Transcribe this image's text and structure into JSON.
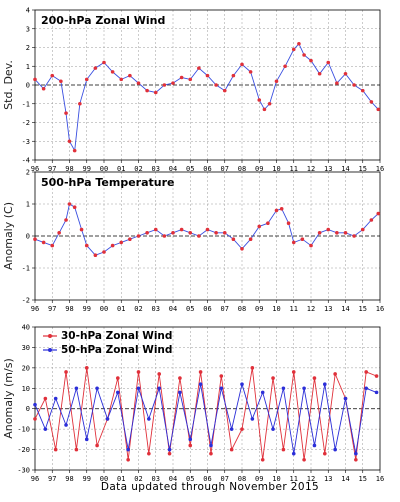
{
  "footer": "Data updated through November 2015",
  "chart_data": [
    {
      "type": "line",
      "title": "200-hPa Zonal Wind",
      "ylabel": "Std. Dev.",
      "ylim": [
        -4,
        4
      ],
      "yticks": [
        -4,
        -3,
        -2,
        -1,
        0,
        1,
        2,
        3,
        4
      ],
      "xlim": [
        1996,
        2016
      ],
      "xticks": [
        "96",
        "97",
        "98",
        "99",
        "00",
        "01",
        "02",
        "03",
        "04",
        "05",
        "06",
        "07",
        "08",
        "09",
        "10",
        "11",
        "12",
        "13",
        "14",
        "15",
        "16"
      ],
      "grid": true,
      "line_color": "#3a4fe0",
      "point_color": "#e0303a",
      "series": [
        {
          "x": [
            1996.0,
            1996.5,
            1997.0,
            1997.5,
            1997.8,
            1998.0,
            1998.3,
            1998.6,
            1999.0,
            1999.5,
            2000.0,
            2000.5,
            2001.0,
            2001.5,
            2002.0,
            2002.5,
            2003.0,
            2003.5,
            2004.0,
            2004.5,
            2005.0,
            2005.5,
            2006.0,
            2006.5,
            2007.0,
            2007.5,
            2008.0,
            2008.5,
            2009.0,
            2009.3,
            2009.6,
            2010.0,
            2010.5,
            2011.0,
            2011.3,
            2011.6,
            2012.0,
            2012.5,
            2013.0,
            2013.5,
            2014.0,
            2014.5,
            2015.0,
            2015.5,
            2015.9
          ],
          "y": [
            0.3,
            -0.2,
            0.5,
            0.2,
            -1.5,
            -3.0,
            -3.5,
            -1.0,
            0.3,
            0.9,
            1.2,
            0.7,
            0.3,
            0.5,
            0.1,
            -0.3,
            -0.4,
            0.0,
            0.1,
            0.4,
            0.3,
            0.9,
            0.5,
            0.0,
            -0.3,
            0.5,
            1.1,
            0.7,
            -0.8,
            -1.3,
            -1.0,
            0.2,
            1.0,
            1.9,
            2.2,
            1.6,
            1.3,
            0.6,
            1.2,
            0.1,
            0.6,
            0.0,
            -0.3,
            -0.9,
            -1.3
          ]
        }
      ]
    },
    {
      "type": "line",
      "title": "500-hPa Temperature",
      "ylabel": "Anomaly (C)",
      "ylim": [
        -2,
        2
      ],
      "yticks": [
        -2,
        -1,
        0,
        1,
        2
      ],
      "xlim": [
        1996,
        2016
      ],
      "xticks": [
        "96",
        "97",
        "98",
        "99",
        "00",
        "01",
        "02",
        "03",
        "04",
        "05",
        "06",
        "07",
        "08",
        "09",
        "10",
        "11",
        "12",
        "13",
        "14",
        "15",
        "16"
      ],
      "grid": true,
      "line_color": "#3a4fe0",
      "point_color": "#e0303a",
      "series": [
        {
          "x": [
            1996.0,
            1996.5,
            1997.0,
            1997.4,
            1997.8,
            1998.0,
            1998.3,
            1998.7,
            1999.0,
            1999.5,
            2000.0,
            2000.5,
            2001.0,
            2001.5,
            2002.0,
            2002.5,
            2003.0,
            2003.5,
            2004.0,
            2004.5,
            2005.0,
            2005.5,
            2006.0,
            2006.5,
            2007.0,
            2007.5,
            2008.0,
            2008.5,
            2009.0,
            2009.5,
            2010.0,
            2010.3,
            2010.7,
            2011.0,
            2011.5,
            2012.0,
            2012.5,
            2013.0,
            2013.5,
            2014.0,
            2014.5,
            2015.0,
            2015.5,
            2015.9
          ],
          "y": [
            -0.1,
            -0.2,
            -0.3,
            0.1,
            0.5,
            1.0,
            0.9,
            0.2,
            -0.3,
            -0.6,
            -0.5,
            -0.3,
            -0.2,
            -0.1,
            0.0,
            0.1,
            0.2,
            0.0,
            0.1,
            0.2,
            0.1,
            0.0,
            0.2,
            0.1,
            0.1,
            -0.1,
            -0.4,
            -0.1,
            0.3,
            0.4,
            0.8,
            0.85,
            0.4,
            -0.2,
            -0.1,
            -0.3,
            0.1,
            0.2,
            0.1,
            0.1,
            0.0,
            0.2,
            0.5,
            0.7
          ]
        }
      ]
    },
    {
      "type": "line",
      "title": "",
      "ylabel": "Anomaly (m/s)",
      "ylim": [
        -30,
        40
      ],
      "yticks": [
        -30,
        -20,
        -10,
        0,
        10,
        20,
        30,
        40
      ],
      "xlim": [
        1996,
        2016
      ],
      "xticks": [
        "96",
        "97",
        "98",
        "99",
        "00",
        "01",
        "02",
        "03",
        "04",
        "05",
        "06",
        "07",
        "08",
        "09",
        "10",
        "11",
        "12",
        "13",
        "14",
        "15",
        "16"
      ],
      "grid": true,
      "legend": "top-left",
      "series": [
        {
          "name": "30-hPa Zonal Wind",
          "color": "#e0303a",
          "x": [
            1996.0,
            1996.6,
            1997.2,
            1997.8,
            1998.4,
            1999.0,
            1999.6,
            2000.2,
            2000.8,
            2001.4,
            2002.0,
            2002.6,
            2003.2,
            2003.8,
            2004.4,
            2005.0,
            2005.6,
            2006.2,
            2006.8,
            2007.4,
            2008.0,
            2008.6,
            2009.2,
            2009.8,
            2010.4,
            2011.0,
            2011.6,
            2012.2,
            2012.8,
            2013.4,
            2014.0,
            2014.6,
            2015.2,
            2015.8
          ],
          "y": [
            -5,
            5,
            -20,
            18,
            -20,
            20,
            -18,
            -5,
            15,
            -25,
            18,
            -22,
            17,
            -22,
            15,
            -18,
            18,
            -22,
            16,
            -20,
            -10,
            20,
            -25,
            15,
            -20,
            18,
            -25,
            15,
            -22,
            17,
            5,
            -25,
            18,
            16
          ]
        },
        {
          "name": "50-hPa Zonal Wind",
          "color": "#2b2ed8",
          "x": [
            1996.0,
            1996.6,
            1997.2,
            1997.8,
            1998.4,
            1999.0,
            1999.6,
            2000.2,
            2000.8,
            2001.4,
            2002.0,
            2002.6,
            2003.2,
            2003.8,
            2004.4,
            2005.0,
            2005.6,
            2006.2,
            2006.8,
            2007.4,
            2008.0,
            2008.6,
            2009.2,
            2009.8,
            2010.4,
            2011.0,
            2011.6,
            2012.2,
            2012.8,
            2013.4,
            2014.0,
            2014.6,
            2015.2,
            2015.8
          ],
          "y": [
            2,
            -10,
            5,
            -8,
            10,
            -15,
            10,
            -5,
            8,
            -20,
            10,
            -5,
            10,
            -20,
            8,
            -15,
            12,
            -18,
            10,
            -10,
            12,
            -5,
            8,
            -10,
            10,
            -22,
            10,
            -18,
            12,
            -20,
            5,
            -22,
            10,
            8
          ]
        }
      ]
    }
  ]
}
